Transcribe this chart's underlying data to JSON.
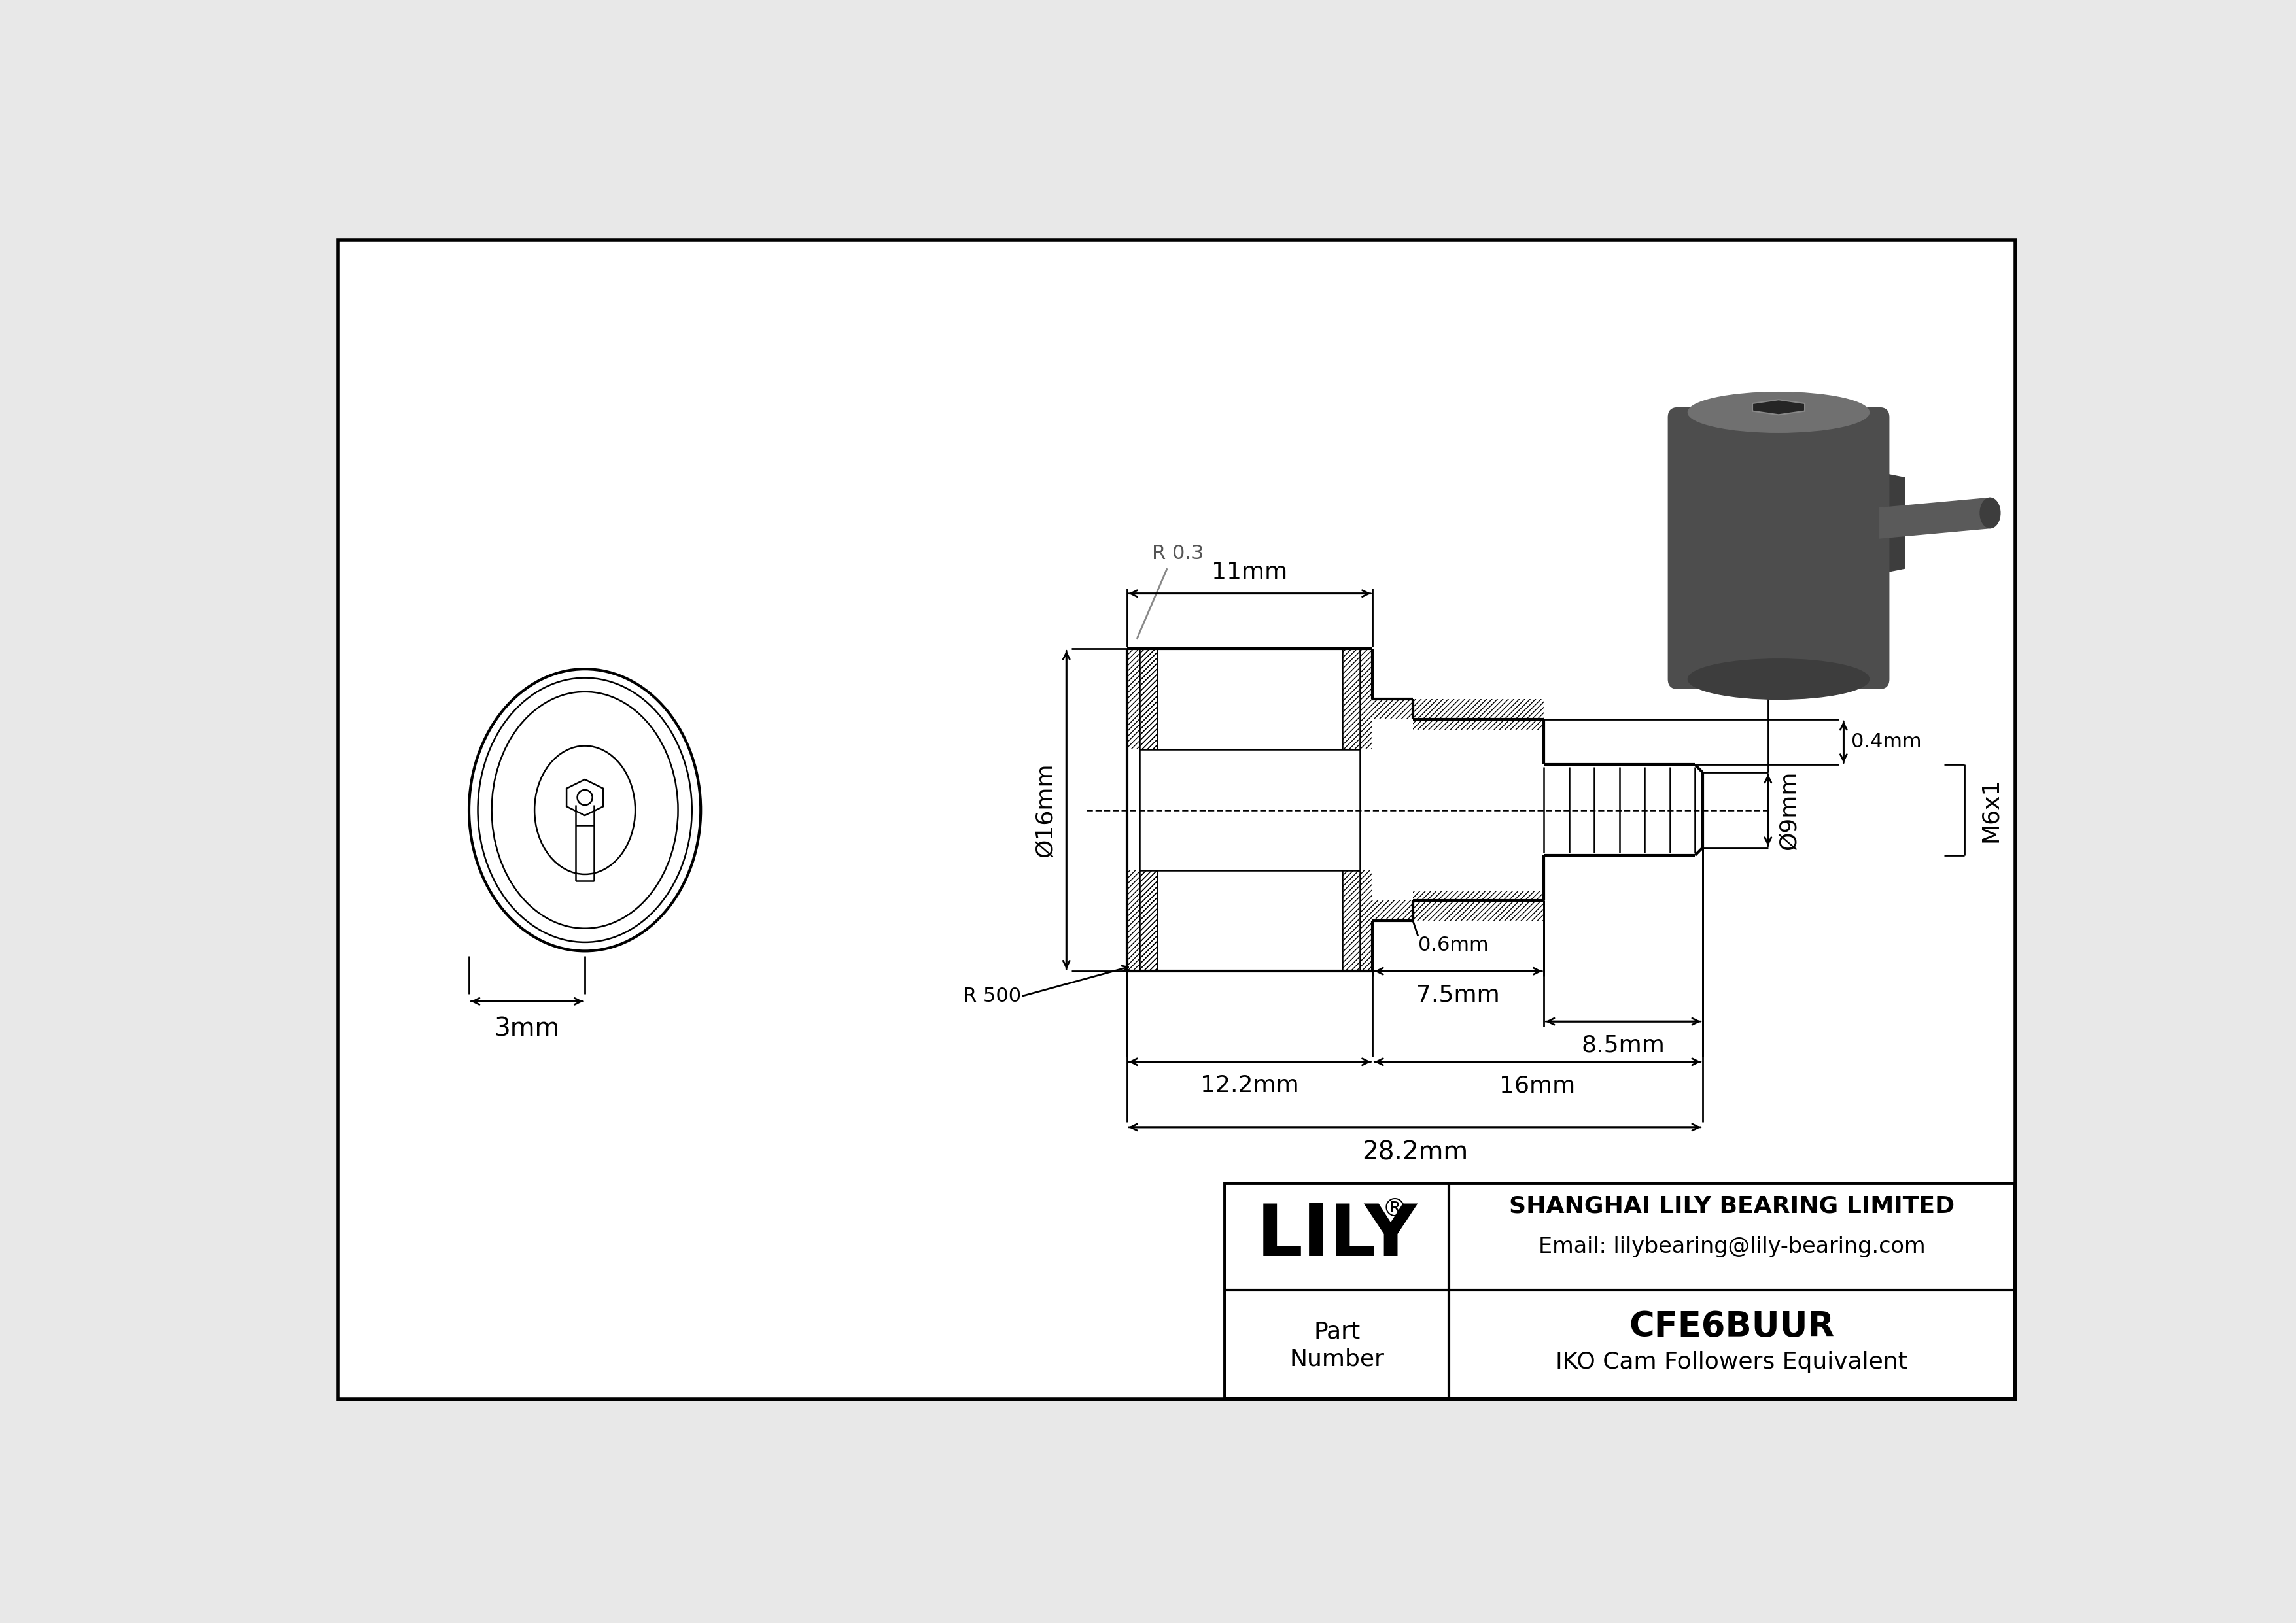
{
  "bg_color": "#e8e8e8",
  "drawing_bg": "#ffffff",
  "line_color": "#000000",
  "title": "CFE6BUUR",
  "subtitle": "IKO Cam Followers Equivalent",
  "company": "SHANGHAI LILY BEARING LIMITED",
  "email": "Email: lilybearing@lily-bearing.com",
  "part_label1": "Part",
  "part_label2": "Number",
  "logo_text": "LILY",
  "logo_reg": "®",
  "dims": {
    "11mm": "11mm",
    "9mm": "Ø9mm",
    "16mm_h": "Ø16mm",
    "3mm": "3mm",
    "7_5mm": "7.5mm",
    "8_5mm": "8.5mm",
    "0_6mm": "0.6mm",
    "12_2mm": "12.2mm",
    "16mm": "16mm",
    "28_2mm": "28.2mm",
    "0_4mm": "0.4mm",
    "M6x1": "M6x1",
    "R03": "R 0.3",
    "R500": "R 500"
  }
}
